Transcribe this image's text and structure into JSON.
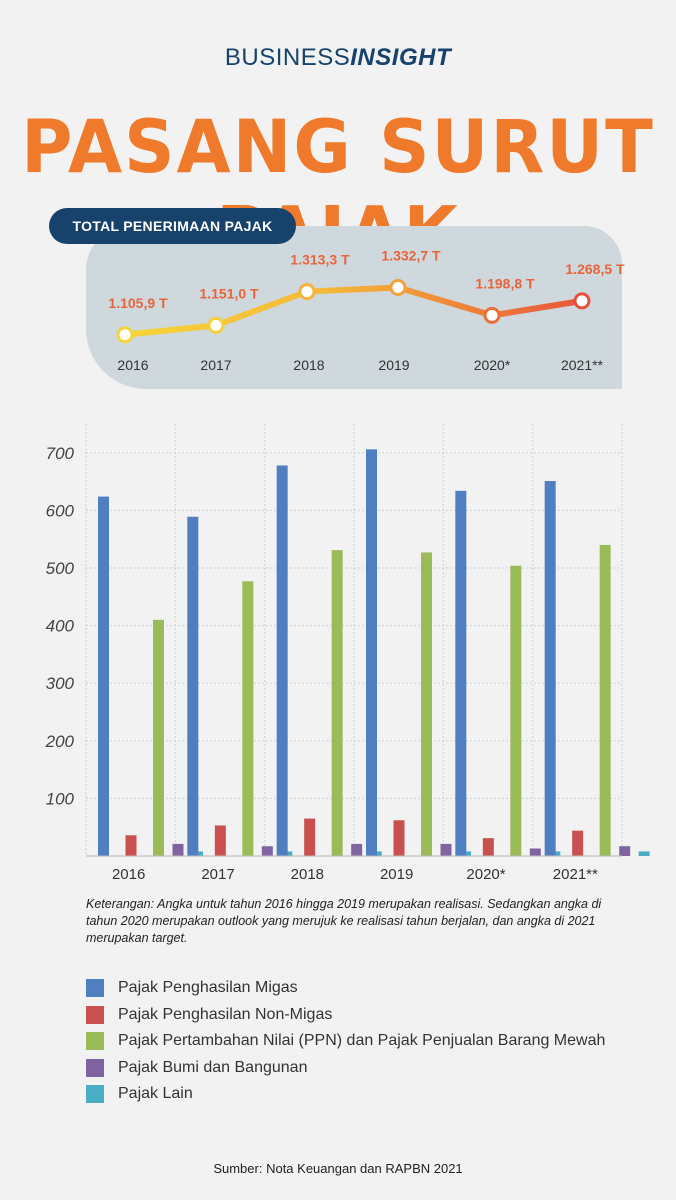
{
  "brand": {
    "part1": "BUSINESS",
    "part2": "INSIGHT"
  },
  "title": "PASANG SURUT PAJAK",
  "summary": {
    "label": "TOTAL PENERIMAAN PAJAK",
    "years": [
      "2016",
      "2017",
      "2018",
      "2019",
      "2020*",
      "2021**"
    ],
    "values": [
      1105.9,
      1151.0,
      1313.3,
      1332.7,
      1198.8,
      1268.5
    ],
    "value_labels": [
      "1.105,9 T",
      "1.151,0 T",
      "1.313,3 T",
      "1.332,7 T",
      "1.198,8 T",
      "1.268,5 T"
    ]
  },
  "chart_data": {
    "type": "bar",
    "categories": [
      "2016",
      "2017",
      "2018",
      "2019",
      "2020*",
      "2021**"
    ],
    "series": [
      {
        "name": "Pajak Penghasilan Migas",
        "values": [
          624,
          589,
          678,
          706,
          634,
          651
        ],
        "color": "#4f7fc1"
      },
      {
        "name": "Pajak Penghasilan Non-Migas",
        "values": [
          36,
          53,
          65,
          62,
          31,
          44
        ],
        "color": "#c85150"
      },
      {
        "name": "Pajak Pertambahan Nilai (PPN) dan Pajak Penjualan Barang Mewah",
        "values": [
          410,
          477,
          531,
          527,
          504,
          540
        ],
        "color": "#9bbb59"
      },
      {
        "name": "Pajak Bumi dan Bangunan",
        "values": [
          21,
          17,
          21,
          21,
          13,
          17
        ],
        "color": "#8064a2"
      },
      {
        "name": "Pajak Lain",
        "values": [
          8,
          8,
          8,
          8,
          8,
          8
        ],
        "color": "#4bacc6"
      }
    ],
    "y_ticks": [
      "100",
      "200",
      "300",
      "400",
      "500",
      "600",
      "700"
    ],
    "ylim": [
      0,
      750
    ],
    "grid": true,
    "legend": "bottom"
  },
  "note": "Keterangan: Angka untuk tahun 2016 hingga 2019 merupakan realisasi. Sedangkan angka di tahun 2020 merupakan outlook yang merujuk ke realisasi tahun berjalan, dan angka di 2021 merupakan target.",
  "source": "Sumber: Nota Keuangan dan RAPBN 2021"
}
